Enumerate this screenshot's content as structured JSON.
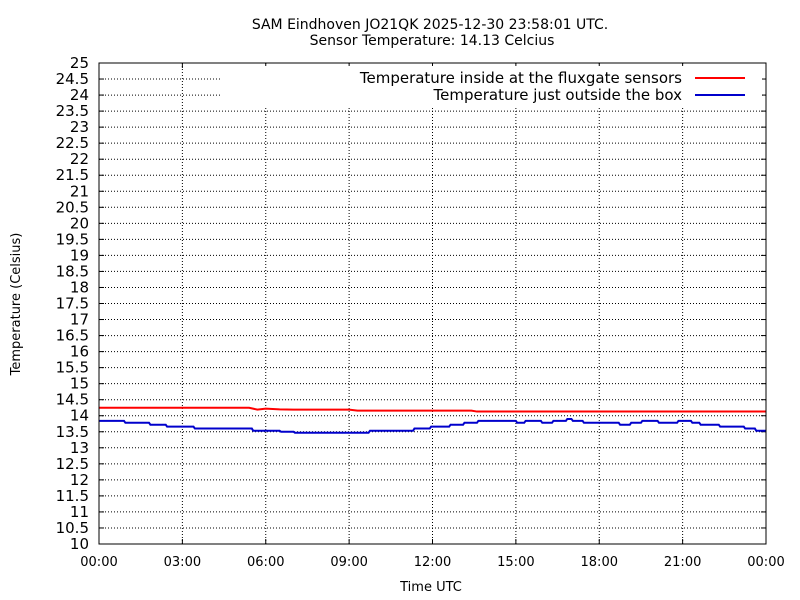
{
  "chart_data": {
    "type": "line",
    "title": "SAM Eindhoven JO21QK 2025-12-30 23:58:01 UTC.",
    "subtitle": "Sensor Temperature: 14.13 Celcius",
    "xlabel": "Time UTC",
    "ylabel": "Temperature (Celsius)",
    "xlim": [
      0,
      24
    ],
    "ylim": [
      10,
      25
    ],
    "x_ticks": [
      0,
      3,
      6,
      9,
      12,
      15,
      18,
      21,
      24
    ],
    "x_tick_labels": [
      "00:00",
      "03:00",
      "06:00",
      "09:00",
      "12:00",
      "15:00",
      "18:00",
      "21:00",
      "00:00"
    ],
    "y_ticks": [
      10,
      10.5,
      11,
      11.5,
      12,
      12.5,
      13,
      13.5,
      14,
      14.5,
      15,
      15.5,
      16,
      16.5,
      17,
      17.5,
      18,
      18.5,
      19,
      19.5,
      20,
      20.5,
      21,
      21.5,
      22,
      22.5,
      23,
      23.5,
      24,
      24.5,
      25
    ],
    "y_tick_labels": [
      "10",
      "10.5",
      "11",
      "11.5",
      "12",
      "12.5",
      "13",
      "13.5",
      "14",
      "14.5",
      "15",
      "15.5",
      "16",
      "16.5",
      "17",
      "17.5",
      "18",
      "18.5",
      "19",
      "19.5",
      "20",
      "20.5",
      "21",
      "21.5",
      "22",
      "22.5",
      "23",
      "23.5",
      "24",
      "24.5",
      "25"
    ],
    "grid": true,
    "legend_position": "top-right",
    "series": [
      {
        "name": "Temperature inside at the fluxgate sensors",
        "color": "#ff0000",
        "points": [
          [
            0,
            14.25
          ],
          [
            5.4,
            14.25
          ],
          [
            5.7,
            14.19
          ],
          [
            6.0,
            14.22
          ],
          [
            6.5,
            14.2
          ],
          [
            7.0,
            14.19
          ],
          [
            9.0,
            14.19
          ],
          [
            9.3,
            14.16
          ],
          [
            10.5,
            14.16
          ],
          [
            11.0,
            14.16
          ],
          [
            13.4,
            14.16
          ],
          [
            13.6,
            14.13
          ],
          [
            17.0,
            14.13
          ],
          [
            24,
            14.13
          ]
        ]
      },
      {
        "name": "Temperature just outside the box",
        "color": "#0000cc",
        "points": [
          [
            0,
            13.84
          ],
          [
            0.9,
            13.84
          ],
          [
            0.95,
            13.78
          ],
          [
            1.8,
            13.78
          ],
          [
            1.85,
            13.72
          ],
          [
            2.4,
            13.72
          ],
          [
            2.45,
            13.66
          ],
          [
            3.4,
            13.66
          ],
          [
            3.45,
            13.6
          ],
          [
            5.5,
            13.6
          ],
          [
            5.55,
            13.53
          ],
          [
            6.5,
            13.53
          ],
          [
            6.55,
            13.5
          ],
          [
            7.0,
            13.5
          ],
          [
            7.05,
            13.47
          ],
          [
            9.7,
            13.47
          ],
          [
            9.75,
            13.53
          ],
          [
            11.3,
            13.53
          ],
          [
            11.35,
            13.6
          ],
          [
            11.9,
            13.6
          ],
          [
            11.95,
            13.66
          ],
          [
            12.6,
            13.66
          ],
          [
            12.65,
            13.72
          ],
          [
            13.1,
            13.72
          ],
          [
            13.15,
            13.78
          ],
          [
            13.6,
            13.78
          ],
          [
            13.65,
            13.84
          ],
          [
            15.0,
            13.84
          ],
          [
            15.05,
            13.78
          ],
          [
            15.3,
            13.78
          ],
          [
            15.35,
            13.84
          ],
          [
            15.9,
            13.84
          ],
          [
            15.95,
            13.78
          ],
          [
            16.3,
            13.78
          ],
          [
            16.35,
            13.84
          ],
          [
            16.8,
            13.84
          ],
          [
            16.85,
            13.9
          ],
          [
            17.0,
            13.9
          ],
          [
            17.05,
            13.84
          ],
          [
            17.4,
            13.84
          ],
          [
            17.45,
            13.78
          ],
          [
            18.7,
            13.78
          ],
          [
            18.75,
            13.72
          ],
          [
            19.1,
            13.72
          ],
          [
            19.15,
            13.78
          ],
          [
            19.5,
            13.78
          ],
          [
            19.55,
            13.84
          ],
          [
            20.1,
            13.84
          ],
          [
            20.15,
            13.78
          ],
          [
            20.8,
            13.78
          ],
          [
            20.85,
            13.84
          ],
          [
            21.3,
            13.84
          ],
          [
            21.35,
            13.78
          ],
          [
            21.6,
            13.78
          ],
          [
            21.65,
            13.72
          ],
          [
            22.3,
            13.72
          ],
          [
            22.35,
            13.66
          ],
          [
            23.2,
            13.66
          ],
          [
            23.25,
            13.6
          ],
          [
            23.6,
            13.6
          ],
          [
            23.65,
            13.53
          ],
          [
            24,
            13.53
          ]
        ]
      }
    ]
  }
}
